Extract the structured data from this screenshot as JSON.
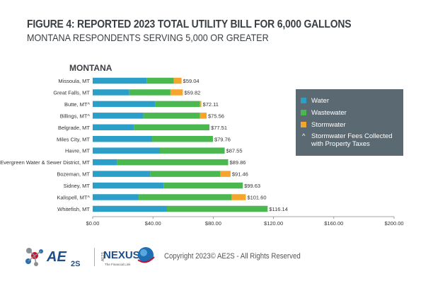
{
  "figure": {
    "title": "FIGURE 4: REPORTED 2023 TOTAL UTILITY BILL FOR 6,000 GALLONS",
    "subtitle": "MONTANA RESPONDENTS SERVING 5,000 OR GREATER"
  },
  "legend": {
    "items": [
      {
        "label": "Water",
        "color": "#2c9fc9"
      },
      {
        "label": "Wastewater",
        "color": "#4bb84f"
      },
      {
        "label": "Stormwater",
        "color": "#f6a52c"
      }
    ],
    "note": {
      "marker": "^",
      "line1": "Stormwater Fees Collected",
      "line2": "with Property Taxes"
    }
  },
  "footer": {
    "copyright": "Copyright 2023© AE2S - All Rights Reserved",
    "logo_ae2s_text": "AE",
    "logo_ae2s_sub": "2S",
    "logo_nexus_text": "NEXUS",
    "logo_nexus_prefix": "AE2S",
    "logo_nexus_tagline": "The Financial Link"
  },
  "colors": {
    "water": "#2c9fc9",
    "wastewater": "#4bb84f",
    "stormwater": "#f6a52c",
    "legend_bg": "#5b6a72"
  },
  "chart_data": {
    "type": "bar",
    "orientation": "horizontal",
    "stacked": true,
    "title": "MONTANA",
    "categories": [
      "Missoula, MT",
      "Great Falls, MT",
      "Butte, MT^",
      "Billings, MT^",
      "Belgrade, MT",
      "Miles City, MT",
      "Havre, MT",
      "Evergreen Water & Sewer District, MT",
      "Bozeman, MT",
      "Sidney, MT",
      "Kalispell, MT^",
      "Whitefish, MT"
    ],
    "series": [
      {
        "name": "Water",
        "values": [
          36.0,
          24.3,
          41.7,
          33.6,
          27.4,
          39.2,
          44.6,
          16.3,
          38.2,
          47.3,
          30.6,
          49.3
        ]
      },
      {
        "name": "Wastewater",
        "values": [
          17.8,
          27.3,
          29.5,
          37.6,
          50.1,
          40.6,
          43.0,
          73.6,
          46.5,
          52.3,
          61.6,
          66.8
        ]
      },
      {
        "name": "Stormwater",
        "values": [
          5.2,
          8.2,
          0.9,
          4.4,
          0,
          0,
          0,
          0,
          6.8,
          0,
          9.4,
          0
        ]
      }
    ],
    "totals": [
      "$59.04",
      "$59.82",
      "$72.11",
      "$75.56",
      "$77.51",
      "$79.76",
      "$87.55",
      "$89.86",
      "$91.46",
      "$99.63",
      "$101.60",
      "$116.14"
    ],
    "xlim": [
      0,
      200
    ],
    "xticks": [
      0,
      40,
      80,
      120,
      160,
      200
    ],
    "xtick_labels": [
      "$0.00",
      "$40.00",
      "$80.00",
      "$120.00",
      "$160.00",
      "$200.00"
    ],
    "xlabel": "",
    "ylabel": "",
    "grid": false,
    "legend_position": "right"
  }
}
